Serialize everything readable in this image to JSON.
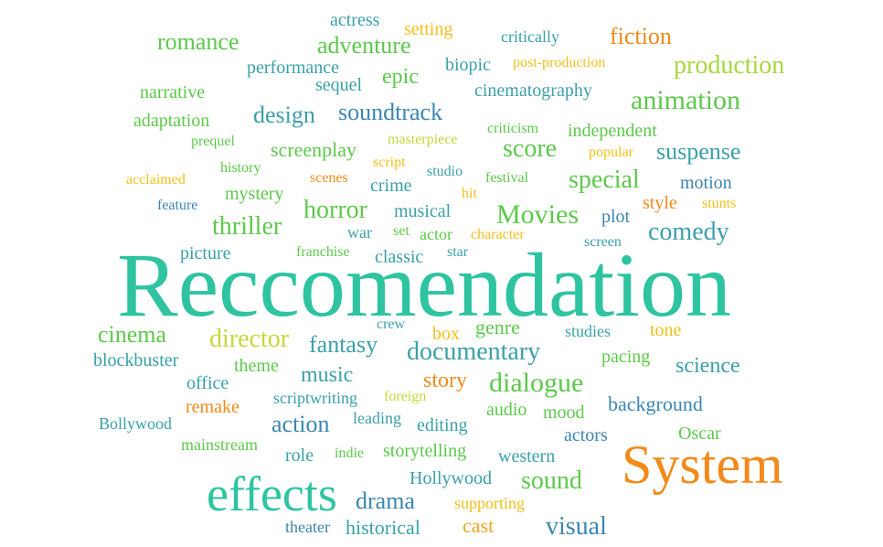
{
  "words": [
    {
      "text": "Reccomendation",
      "color": "#2ec4a0"
    },
    {
      "text": "System",
      "color": "#f28a1a"
    },
    {
      "text": "effects",
      "color": "#2ec4a0"
    },
    {
      "text": "Movies",
      "color": "#5cc94a"
    },
    {
      "text": "documentary",
      "color": "#3aa0a8"
    },
    {
      "text": "dialogue",
      "color": "#5cc94a"
    },
    {
      "text": "animation",
      "color": "#5cc94a"
    },
    {
      "text": "production",
      "color": "#a6d93c"
    },
    {
      "text": "fiction",
      "color": "#f28a1a"
    },
    {
      "text": "romance",
      "color": "#5cc94a"
    },
    {
      "text": "adventure",
      "color": "#5cc94a"
    },
    {
      "text": "soundtrack",
      "color": "#3a86b0"
    },
    {
      "text": "suspense",
      "color": "#3aa0a8"
    },
    {
      "text": "special",
      "color": "#5cc94a"
    },
    {
      "text": "comedy",
      "color": "#3aa0a8"
    },
    {
      "text": "thriller",
      "color": "#5cc94a"
    },
    {
      "text": "horror",
      "color": "#5cc94a"
    },
    {
      "text": "fantasy",
      "color": "#3aa0a8"
    },
    {
      "text": "director",
      "color": "#c4d93a"
    },
    {
      "text": "cinema",
      "color": "#5cc94a"
    },
    {
      "text": "action",
      "color": "#3a86b0"
    },
    {
      "text": "drama",
      "color": "#3a86b0"
    },
    {
      "text": "sound",
      "color": "#5cc94a"
    },
    {
      "text": "visual",
      "color": "#3a86b0"
    },
    {
      "text": "score",
      "color": "#5cc94a"
    },
    {
      "text": "design",
      "color": "#3aa0a8"
    },
    {
      "text": "epic",
      "color": "#5cc94a"
    },
    {
      "text": "music",
      "color": "#3aa0a8"
    },
    {
      "text": "story",
      "color": "#f28a1a"
    },
    {
      "text": "science",
      "color": "#3aa0a8"
    },
    {
      "text": "background",
      "color": "#3a86b0"
    },
    {
      "text": "Hollywood",
      "color": "#3aa0a8"
    },
    {
      "text": "storytelling",
      "color": "#5cc94a"
    },
    {
      "text": "cast",
      "color": "#f2a51a"
    },
    {
      "text": "historical",
      "color": "#3aa0a8"
    },
    {
      "text": "genre",
      "color": "#5cc94a"
    },
    {
      "text": "performance",
      "color": "#3aa0a8"
    },
    {
      "text": "sequel",
      "color": "#3aa0a8"
    },
    {
      "text": "biopic",
      "color": "#3aa0a8"
    },
    {
      "text": "cinematography",
      "color": "#3aa0a8"
    },
    {
      "text": "narrative",
      "color": "#5cc94a"
    },
    {
      "text": "adaptation",
      "color": "#5cc94a"
    },
    {
      "text": "independent",
      "color": "#5cc94a"
    },
    {
      "text": "screenplay",
      "color": "#5cc94a"
    },
    {
      "text": "blockbuster",
      "color": "#3aa0a8"
    },
    {
      "text": "office",
      "color": "#3aa0a8"
    },
    {
      "text": "theme",
      "color": "#5cc94a"
    },
    {
      "text": "actress",
      "color": "#3aa0a8"
    },
    {
      "text": "setting",
      "color": "#f2c01a"
    },
    {
      "text": "critically",
      "color": "#3aa0a8"
    },
    {
      "text": "post-production",
      "color": "#f2c01a"
    },
    {
      "text": "prequel",
      "color": "#5cc94a"
    },
    {
      "text": "masterpiece",
      "color": "#c4d93a"
    },
    {
      "text": "criticism",
      "color": "#5cc94a"
    },
    {
      "text": "popular",
      "color": "#f2c01a"
    },
    {
      "text": "acclaimed",
      "color": "#f2c01a"
    },
    {
      "text": "history",
      "color": "#5cc94a"
    },
    {
      "text": "scenes",
      "color": "#f28a1a"
    },
    {
      "text": "script",
      "color": "#f2c01a"
    },
    {
      "text": "studio",
      "color": "#3aa0a8"
    },
    {
      "text": "festival",
      "color": "#5cc94a"
    },
    {
      "text": "motion",
      "color": "#3a86b0"
    },
    {
      "text": "feature",
      "color": "#3a86b0"
    },
    {
      "text": "mystery",
      "color": "#5cc94a"
    },
    {
      "text": "crime",
      "color": "#3aa0a8"
    },
    {
      "text": "hit",
      "color": "#f2c01a"
    },
    {
      "text": "style",
      "color": "#f28a1a"
    },
    {
      "text": "stunts",
      "color": "#f2c01a"
    },
    {
      "text": "musical",
      "color": "#3aa0a8"
    },
    {
      "text": "plot",
      "color": "#3a86b0"
    },
    {
      "text": "war",
      "color": "#3aa0a8"
    },
    {
      "text": "set",
      "color": "#5cc94a"
    },
    {
      "text": "actor",
      "color": "#5cc94a"
    },
    {
      "text": "character",
      "color": "#f2c01a"
    },
    {
      "text": "screen",
      "color": "#3aa0a8"
    },
    {
      "text": "picture",
      "color": "#3aa0a8"
    },
    {
      "text": "franchise",
      "color": "#5cc94a"
    },
    {
      "text": "classic",
      "color": "#3aa0a8"
    },
    {
      "text": "star",
      "color": "#3aa0a8"
    },
    {
      "text": "crew",
      "color": "#3aa0a8"
    },
    {
      "text": "box",
      "color": "#f2c01a"
    },
    {
      "text": "studies",
      "color": "#3aa0a8"
    },
    {
      "text": "tone",
      "color": "#f2c01a"
    },
    {
      "text": "pacing",
      "color": "#5cc94a"
    },
    {
      "text": "remake",
      "color": "#f28a1a"
    },
    {
      "text": "scriptwriting",
      "color": "#3aa0a8"
    },
    {
      "text": "foreign",
      "color": "#c4d93a"
    },
    {
      "text": "audio",
      "color": "#5cc94a"
    },
    {
      "text": "mood",
      "color": "#5cc94a"
    },
    {
      "text": "Bollywood",
      "color": "#3aa0a8"
    },
    {
      "text": "leading",
      "color": "#3aa0a8"
    },
    {
      "text": "editing",
      "color": "#3aa0a8"
    },
    {
      "text": "actors",
      "color": "#3a86b0"
    },
    {
      "text": "Oscar",
      "color": "#5cc94a"
    },
    {
      "text": "mainstream",
      "color": "#5cc94a"
    },
    {
      "text": "role",
      "color": "#3aa0a8"
    },
    {
      "text": "indie",
      "color": "#5cc94a"
    },
    {
      "text": "western",
      "color": "#3aa0a8"
    },
    {
      "text": "supporting",
      "color": "#f2c01a"
    },
    {
      "text": "theater",
      "color": "#3a86b0"
    }
  ]
}
